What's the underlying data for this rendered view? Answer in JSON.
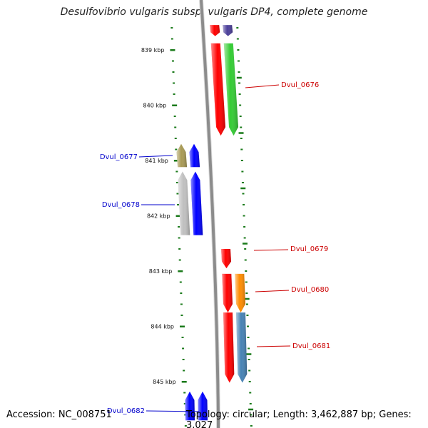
{
  "title": "Desulfovibrio vulgaris subsp. vulgaris DP4, complete genome",
  "accession": "Accession: NC_008751",
  "topology": "Topology: circular; Length: 3,462,887 bp; Genes: 3,027",
  "colors": {
    "backbone": "#8c8c8c",
    "tick": "#1a7a1a",
    "left_label": "#0000cc",
    "right_label": "#cc0000"
  },
  "kbp_ticks": [
    {
      "label": "839 kbp",
      "kbp": 839
    },
    {
      "label": "840 kbp",
      "kbp": 840
    },
    {
      "label": "841 kbp",
      "kbp": 841
    },
    {
      "label": "842 kbp",
      "kbp": 842
    },
    {
      "label": "843 kbp",
      "kbp": 843
    },
    {
      "label": "844 kbp",
      "kbp": 844
    },
    {
      "label": "845 kbp",
      "kbp": 845
    }
  ],
  "gene_labels": [
    {
      "text": "Dvul_0676",
      "side": "right"
    },
    {
      "text": "Dvul_0677",
      "side": "left"
    },
    {
      "text": "Dvul_0678",
      "side": "left"
    },
    {
      "text": "Dvul_0679",
      "side": "right"
    },
    {
      "text": "Dvul_0680",
      "side": "right"
    },
    {
      "text": "Dvul_0681",
      "side": "right"
    },
    {
      "text": "Dvul_0682",
      "side": "left"
    }
  ],
  "genes": [
    {
      "kind": "gene",
      "color": "#ff0000",
      "strand": "right",
      "start_kbp": 838.55,
      "end_kbp": 838.75
    },
    {
      "kind": "cds",
      "color": "#4b3f9a",
      "strand": "right",
      "start_kbp": 838.55,
      "end_kbp": 838.75
    },
    {
      "kind": "gene",
      "color": "#ff0000",
      "strand": "right",
      "start_kbp": 838.88,
      "end_kbp": 840.55
    },
    {
      "kind": "cds",
      "color": "#33cc33",
      "strand": "right",
      "start_kbp": 838.88,
      "end_kbp": 840.55
    },
    {
      "kind": "cds",
      "color": "#a89a55",
      "strand": "left",
      "start_kbp": 840.7,
      "end_kbp": 841.12
    },
    {
      "kind": "gene",
      "color": "#0000ff",
      "strand": "left",
      "start_kbp": 840.7,
      "end_kbp": 841.12
    },
    {
      "kind": "cds",
      "color": "#c0c0c0",
      "strand": "left",
      "start_kbp": 841.2,
      "end_kbp": 842.35
    },
    {
      "kind": "gene",
      "color": "#0000ff",
      "strand": "left",
      "start_kbp": 841.2,
      "end_kbp": 842.35
    },
    {
      "kind": "gene",
      "color": "#ff0000",
      "strand": "right",
      "start_kbp": 842.6,
      "end_kbp": 842.95
    },
    {
      "kind": "gene",
      "color": "#ff0000",
      "strand": "right",
      "start_kbp": 843.05,
      "end_kbp": 843.75
    },
    {
      "kind": "cds",
      "color": "#ff8c00",
      "strand": "right",
      "start_kbp": 843.05,
      "end_kbp": 843.75
    },
    {
      "kind": "gene",
      "color": "#ff0000",
      "strand": "right",
      "start_kbp": 843.75,
      "end_kbp": 845.02
    },
    {
      "kind": "cds",
      "color": "#4682b4",
      "strand": "right",
      "start_kbp": 843.75,
      "end_kbp": 845.02
    },
    {
      "kind": "gene",
      "color": "#0000ff",
      "strand": "left",
      "start_kbp": 845.18,
      "end_kbp": 845.7
    },
    {
      "kind": "cds",
      "color": "#0000ff",
      "strand": "left",
      "start_kbp": 845.18,
      "end_kbp": 845.7
    }
  ]
}
